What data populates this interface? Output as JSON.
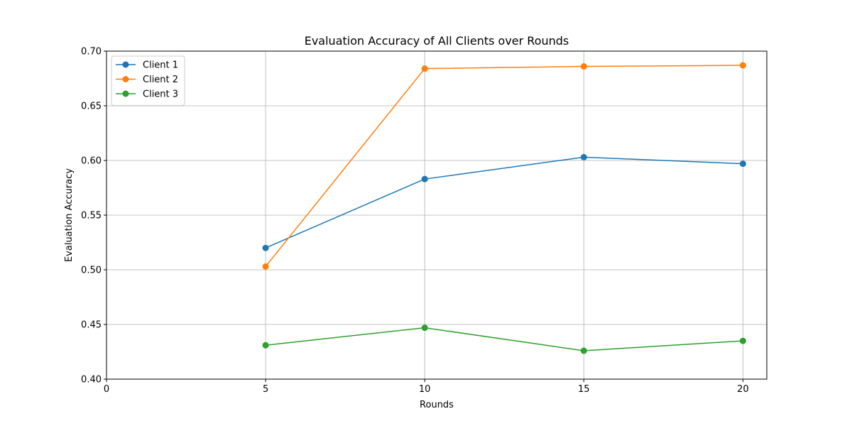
{
  "chart_data": {
    "type": "line",
    "title": "Evaluation Accuracy of All Clients over Rounds",
    "xlabel": "Rounds",
    "ylabel": "Evaluation Accuracy",
    "x": [
      5,
      10,
      15,
      20
    ],
    "xlim": [
      0,
      20.75
    ],
    "ylim": [
      0.4,
      0.7
    ],
    "xticks": [
      0,
      5,
      10,
      15,
      20
    ],
    "yticks": [
      0.4,
      0.45,
      0.5,
      0.55,
      0.6,
      0.65,
      0.7
    ],
    "xtick_labels": [
      "0",
      "5",
      "10",
      "15",
      "20"
    ],
    "ytick_labels": [
      "0.40",
      "0.45",
      "0.50",
      "0.55",
      "0.60",
      "0.65",
      "0.70"
    ],
    "grid": true,
    "legend_position": "top-left",
    "series": [
      {
        "name": "Client 1",
        "color": "#1f77b4",
        "values": [
          0.52,
          0.583,
          0.603,
          0.597
        ]
      },
      {
        "name": "Client 2",
        "color": "#ff7f0e",
        "values": [
          0.503,
          0.684,
          0.686,
          0.687
        ]
      },
      {
        "name": "Client 3",
        "color": "#2ca02c",
        "values": [
          0.431,
          0.447,
          0.426,
          0.435
        ]
      }
    ]
  }
}
